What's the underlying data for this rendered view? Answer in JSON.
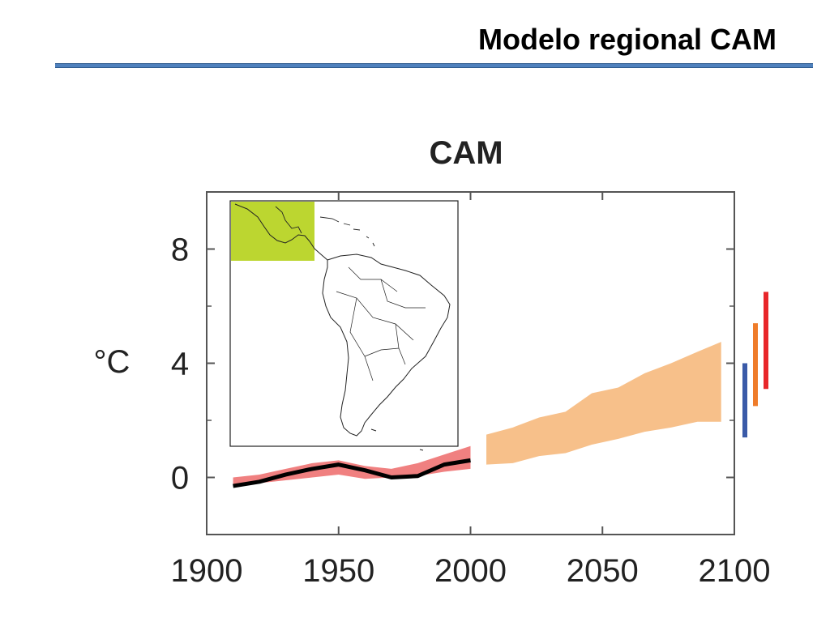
{
  "slide": {
    "title": "Modelo regional CAM"
  },
  "colors": {
    "title_rule": "#4f81bd",
    "historical_band": "#f08080",
    "observed_line": "#000000",
    "projection_band": "#f7c08a",
    "bar_low": "#3a5aa8",
    "bar_mid": "#ef7c2a",
    "bar_high": "#e8262a",
    "map_region": "#bcd630"
  },
  "chart_data": {
    "type": "area",
    "title": "CAM",
    "ylabel": "°C",
    "xlabel": "",
    "xlim": [
      1900,
      2100
    ],
    "ylim": [
      -2,
      10
    ],
    "x_ticks": [
      "1900",
      "1950",
      "2000",
      "2050",
      "2100"
    ],
    "x_tick_values": [
      1900,
      1950,
      2000,
      2050,
      2100
    ],
    "y_ticks": [
      "0",
      "4",
      "8"
    ],
    "y_tick_values": [
      0,
      4,
      8
    ],
    "grid": false,
    "historical_range": {
      "x": [
        1910,
        1920,
        1930,
        1940,
        1950,
        1960,
        1970,
        1980,
        1990,
        2000
      ],
      "low": [
        -0.3,
        -0.2,
        -0.1,
        0.0,
        0.1,
        -0.05,
        0.0,
        0.05,
        0.2,
        0.3
      ],
      "high": [
        0.0,
        0.1,
        0.3,
        0.5,
        0.6,
        0.4,
        0.3,
        0.5,
        0.8,
        1.1
      ]
    },
    "observed": {
      "x": [
        1910,
        1920,
        1930,
        1940,
        1950,
        1960,
        1970,
        1980,
        1990,
        2000
      ],
      "y": [
        -0.3,
        -0.15,
        0.1,
        0.3,
        0.45,
        0.25,
        0.0,
        0.05,
        0.45,
        0.6
      ]
    },
    "projection_range": {
      "x": [
        2006,
        2016,
        2026,
        2036,
        2046,
        2056,
        2066,
        2076,
        2086,
        2095
      ],
      "low": [
        0.45,
        0.5,
        0.75,
        0.85,
        1.15,
        1.35,
        1.6,
        1.75,
        1.95,
        1.95
      ],
      "high": [
        1.5,
        1.75,
        2.1,
        2.3,
        2.95,
        3.15,
        3.65,
        4.0,
        4.4,
        4.75
      ]
    },
    "end_century_bars": [
      {
        "low": 1.4,
        "high": 4.0
      },
      {
        "low": 2.5,
        "high": 5.4
      },
      {
        "low": 3.1,
        "high": 6.5
      }
    ],
    "inset_map": {
      "region": "Central America"
    }
  }
}
